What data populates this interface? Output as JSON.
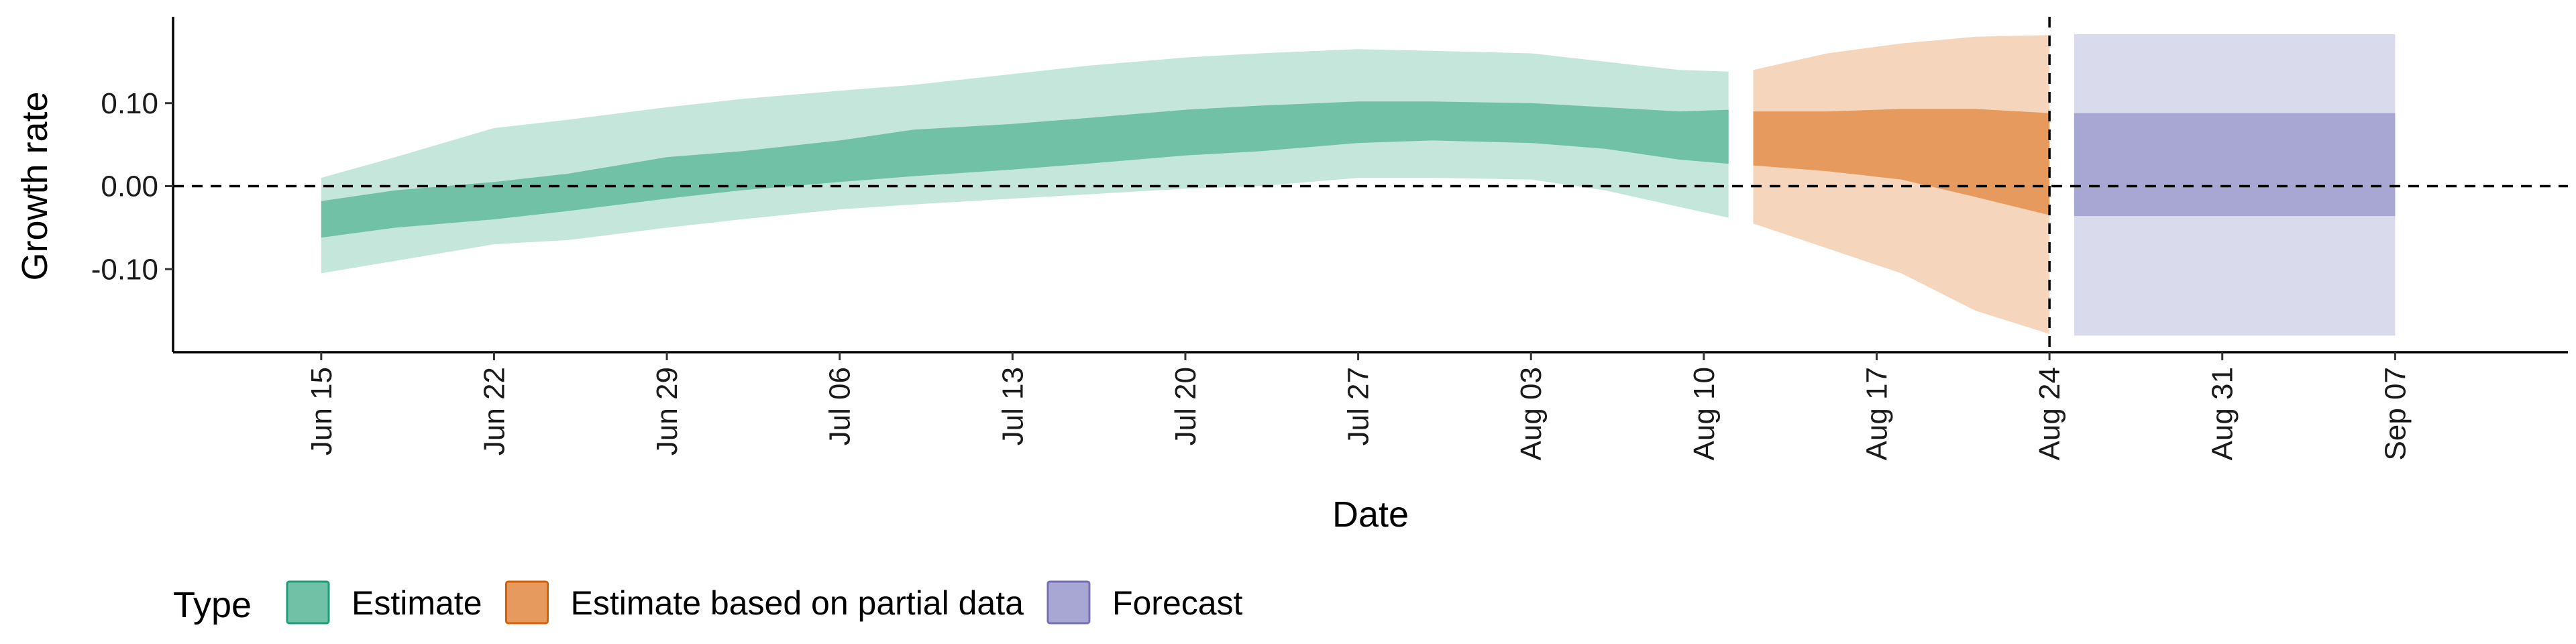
{
  "chart_data": {
    "type": "area",
    "xlabel": "Date",
    "ylabel": "Growth rate",
    "x_range": [
      "2020-06-09",
      "2020-09-14"
    ],
    "ylim": [
      -0.2,
      0.2
    ],
    "y_ticks": [
      -0.1,
      0.0,
      0.1
    ],
    "y_tick_labels": [
      "-0.10",
      "0.00",
      "0.10"
    ],
    "x_ticks": [
      "2020-06-15",
      "2020-06-22",
      "2020-06-29",
      "2020-07-06",
      "2020-07-13",
      "2020-07-20",
      "2020-07-27",
      "2020-08-03",
      "2020-08-10",
      "2020-08-17",
      "2020-08-24",
      "2020-08-31",
      "2020-09-07"
    ],
    "x_tick_labels": [
      "Jun 15",
      "Jun 22",
      "Jun 29",
      "Jul 06",
      "Jul 13",
      "Jul 20",
      "Jul 27",
      "Aug 03",
      "Aug 10",
      "Aug 17",
      "Aug 24",
      "Aug 31",
      "Sep 07"
    ],
    "reference_lines": [
      {
        "axis": "y",
        "value": 0.0,
        "style": "dashed"
      },
      {
        "axis": "x",
        "value": "2020-08-24",
        "style": "dashed"
      }
    ],
    "legend": {
      "title": "Type",
      "position": "bottom",
      "items": [
        {
          "label": "Estimate",
          "fill": "#71c1a7",
          "stroke": "#1b9e77"
        },
        {
          "label": "Estimate based on partial data",
          "fill": "#e79a5e",
          "stroke": "#d95f02"
        },
        {
          "label": "Forecast",
          "fill": "#a8a6d2",
          "stroke": "#7570b3"
        }
      ]
    },
    "series": [
      {
        "name": "Estimate",
        "color_inner": "#71c1a7",
        "color_outer": "#c4e6db",
        "points": [
          {
            "x": "2020-06-15",
            "lo90": -0.105,
            "lo50": -0.062,
            "hi50": -0.018,
            "hi90": 0.01
          },
          {
            "x": "2020-06-18",
            "lo90": -0.09,
            "lo50": -0.05,
            "hi50": -0.005,
            "hi90": 0.035
          },
          {
            "x": "2020-06-22",
            "lo90": -0.07,
            "lo50": -0.04,
            "hi50": 0.005,
            "hi90": 0.07
          },
          {
            "x": "2020-06-25",
            "lo90": -0.065,
            "lo50": -0.03,
            "hi50": 0.015,
            "hi90": 0.08
          },
          {
            "x": "2020-06-29",
            "lo90": -0.05,
            "lo50": -0.015,
            "hi50": 0.035,
            "hi90": 0.095
          },
          {
            "x": "2020-07-02",
            "lo90": -0.04,
            "lo50": -0.005,
            "hi50": 0.042,
            "hi90": 0.105
          },
          {
            "x": "2020-07-06",
            "lo90": -0.028,
            "lo50": 0.005,
            "hi50": 0.055,
            "hi90": 0.115
          },
          {
            "x": "2020-07-09",
            "lo90": -0.022,
            "lo50": 0.012,
            "hi50": 0.068,
            "hi90": 0.122
          },
          {
            "x": "2020-07-13",
            "lo90": -0.015,
            "lo50": 0.02,
            "hi50": 0.075,
            "hi90": 0.135
          },
          {
            "x": "2020-07-16",
            "lo90": -0.01,
            "lo50": 0.027,
            "hi50": 0.082,
            "hi90": 0.145
          },
          {
            "x": "2020-07-20",
            "lo90": -0.003,
            "lo50": 0.037,
            "hi50": 0.092,
            "hi90": 0.155
          },
          {
            "x": "2020-07-23",
            "lo90": 0.0,
            "lo50": 0.042,
            "hi50": 0.097,
            "hi90": 0.16
          },
          {
            "x": "2020-07-27",
            "lo90": 0.01,
            "lo50": 0.052,
            "hi50": 0.102,
            "hi90": 0.165
          },
          {
            "x": "2020-07-30",
            "lo90": 0.01,
            "lo50": 0.055,
            "hi50": 0.102,
            "hi90": 0.163
          },
          {
            "x": "2020-08-03",
            "lo90": 0.008,
            "lo50": 0.052,
            "hi50": 0.1,
            "hi90": 0.16
          },
          {
            "x": "2020-08-06",
            "lo90": -0.005,
            "lo50": 0.045,
            "hi50": 0.095,
            "hi90": 0.15
          },
          {
            "x": "2020-08-09",
            "lo90": -0.025,
            "lo50": 0.032,
            "hi50": 0.09,
            "hi90": 0.14
          },
          {
            "x": "2020-08-11",
            "lo90": -0.038,
            "lo50": 0.027,
            "hi50": 0.092,
            "hi90": 0.138
          }
        ]
      },
      {
        "name": "Estimate based on partial data",
        "color_inner": "#e79a5e",
        "color_outer": "#f5d5bc",
        "points": [
          {
            "x": "2020-08-12",
            "lo90": -0.045,
            "lo50": 0.025,
            "hi50": 0.09,
            "hi90": 0.14
          },
          {
            "x": "2020-08-15",
            "lo90": -0.075,
            "lo50": 0.018,
            "hi50": 0.09,
            "hi90": 0.16
          },
          {
            "x": "2020-08-18",
            "lo90": -0.105,
            "lo50": 0.008,
            "hi50": 0.093,
            "hi90": 0.172
          },
          {
            "x": "2020-08-21",
            "lo90": -0.15,
            "lo50": -0.013,
            "hi50": 0.093,
            "hi90": 0.18
          },
          {
            "x": "2020-08-24",
            "lo90": -0.178,
            "lo50": -0.035,
            "hi50": 0.088,
            "hi90": 0.182
          }
        ]
      },
      {
        "name": "Forecast",
        "color_inner": "#a8a6d2",
        "color_outer": "#dadaed",
        "points": [
          {
            "x": "2020-08-25",
            "lo90": -0.18,
            "lo50": -0.036,
            "hi50": 0.088,
            "hi90": 0.183
          },
          {
            "x": "2020-09-07",
            "lo90": -0.18,
            "lo50": -0.036,
            "hi50": 0.088,
            "hi90": 0.183
          }
        ]
      }
    ]
  }
}
